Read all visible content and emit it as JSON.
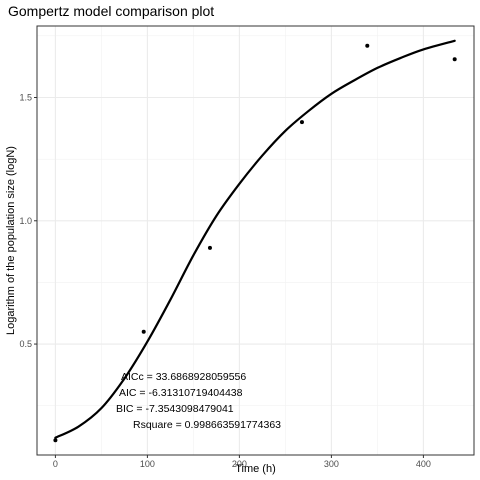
{
  "chart_data": {
    "type": "scatter",
    "title": "Gompertz model comparison plot",
    "xlabel": "Time (h)",
    "ylabel": "Logarithm of the population size (logN)",
    "xlim": [
      -20,
      455
    ],
    "ylim": [
      0.05,
      1.79
    ],
    "xticks": [
      0,
      100,
      200,
      300,
      400
    ],
    "yticks": [
      0.5,
      1.0,
      1.5
    ],
    "ytick_labels": [
      "0.5",
      "1.0",
      "1.5"
    ],
    "grid": true,
    "points": {
      "x": [
        0,
        96,
        168,
        268,
        339,
        434
      ],
      "y": [
        0.11,
        0.55,
        0.89,
        1.4,
        1.71,
        1.655
      ]
    },
    "fitted_curve": {
      "x": [
        0,
        25,
        50,
        75,
        100,
        125,
        150,
        175,
        200,
        225,
        250,
        275,
        300,
        325,
        350,
        375,
        400,
        434
      ],
      "y": [
        0.12,
        0.165,
        0.24,
        0.36,
        0.51,
        0.68,
        0.86,
        1.02,
        1.15,
        1.265,
        1.365,
        1.445,
        1.515,
        1.57,
        1.62,
        1.66,
        1.695,
        1.73
      ]
    },
    "annotations": [
      "AICc = 33.6868928059556",
      "AIC = -6.31310719404438",
      "BIC = -7.3543098479041",
      "Rsquare = 0.998663591774363"
    ]
  }
}
